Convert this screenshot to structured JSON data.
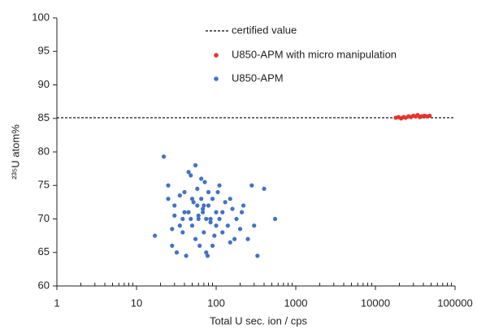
{
  "chart_data": {
    "type": "scatter",
    "x_label": "Total U sec. ion / cps",
    "y_label": "²³⁵U atom%",
    "xscale": "log",
    "xlim": [
      1,
      100000
    ],
    "xticks": [
      1,
      10,
      100,
      1000,
      10000,
      100000
    ],
    "ylim": [
      60,
      100
    ],
    "yticks": [
      60,
      65,
      70,
      75,
      80,
      85,
      90,
      95,
      100
    ],
    "reference_line": {
      "name": "certified value",
      "value": 85.1,
      "color": "#000000"
    },
    "series": [
      {
        "name": "U850-APM with micro manipulation",
        "color": "#e8322d",
        "x": [
          18000,
          19500,
          21000,
          22500,
          24000,
          26000,
          28000,
          30000,
          32000,
          34000,
          36000,
          38000,
          41000,
          44000,
          48000
        ],
        "values": [
          85.1,
          85.2,
          85.0,
          85.2,
          85.1,
          85.3,
          85.2,
          85.4,
          85.3,
          85.5,
          85.2,
          85.3,
          85.4,
          85.3,
          85.4
        ]
      },
      {
        "name": "U850-APM",
        "color": "#4472c4",
        "x": [
          22,
          17,
          25,
          28,
          30,
          32,
          35,
          38,
          40,
          42,
          45,
          48,
          50,
          52,
          55,
          58,
          60,
          62,
          65,
          68,
          70,
          72,
          75,
          78,
          80,
          85,
          90,
          95,
          100,
          105,
          110,
          120,
          130,
          140,
          150,
          160,
          180,
          200,
          220,
          250,
          280,
          330,
          400,
          550,
          45,
          55,
          65,
          75,
          35,
          40,
          50,
          60,
          70,
          80,
          90,
          100,
          120,
          150,
          30,
          28,
          38,
          48,
          58,
          68,
          85,
          110,
          170,
          210,
          300,
          25
        ],
        "values": [
          79.3,
          67.5,
          75,
          68.5,
          72,
          65,
          73.5,
          70,
          74,
          64.5,
          71,
          76.5,
          69,
          72.5,
          67,
          74.5,
          70.5,
          66,
          73,
          71.5,
          68,
          75.5,
          70,
          64.5,
          72,
          69.5,
          73,
          67.5,
          71,
          74,
          70,
          68,
          72.5,
          69,
          66.5,
          71.5,
          70,
          68.5,
          72,
          67,
          75,
          64.5,
          74.5,
          70,
          77,
          78,
          76,
          65,
          69,
          71,
          73,
          70,
          72,
          74,
          66,
          69,
          71,
          73,
          70.5,
          66,
          68,
          70,
          72,
          71,
          70,
          75,
          67,
          71,
          69,
          73
        ]
      }
    ]
  }
}
